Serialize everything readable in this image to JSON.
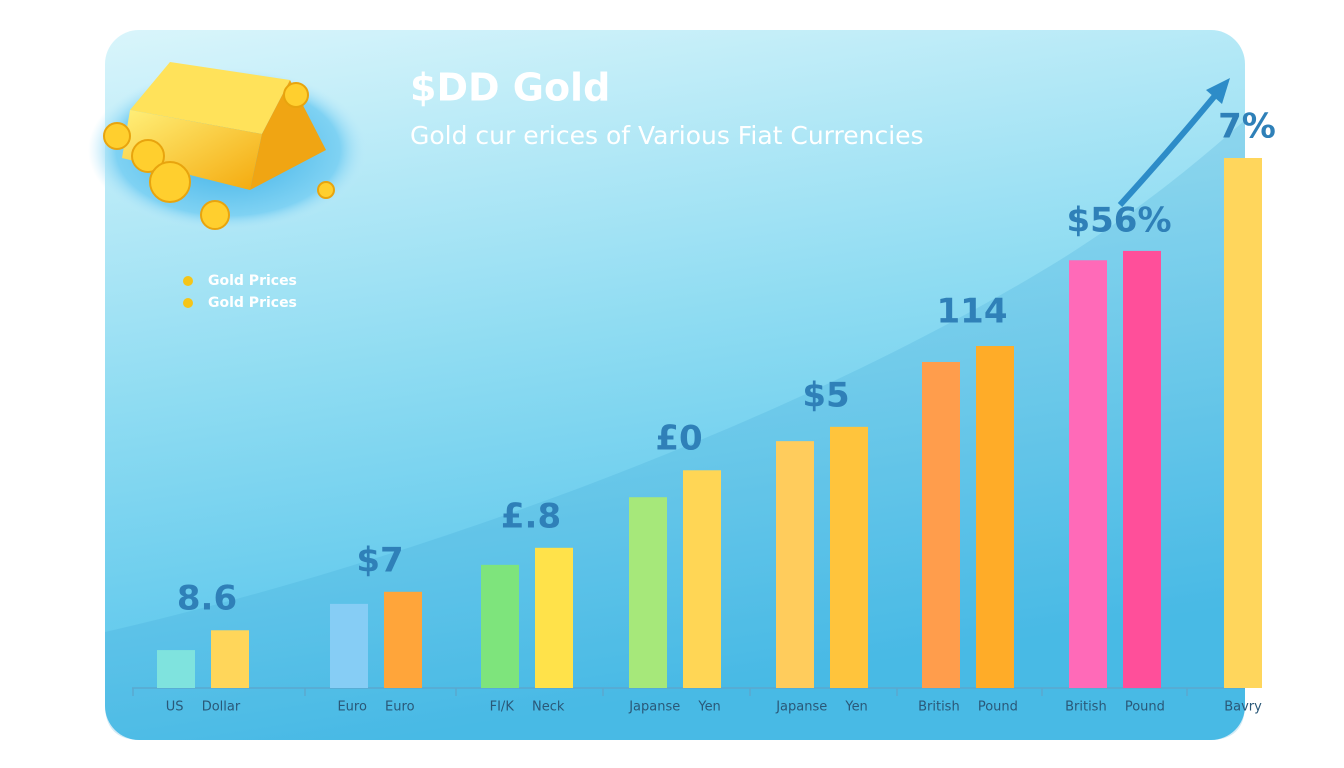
{
  "chart_data": {
    "type": "bar",
    "title": "$DD Gold",
    "subtitle": "Gold cur erices of Various Fiat Currencies",
    "categories": [
      "US Dollar",
      "Euro Euro",
      "FI/K Neck",
      "Japanse Yen",
      "Japanse Yen",
      "British Pound",
      "British Pound",
      "Bavry"
    ],
    "series": [
      {
        "name": "Gold Prices",
        "color": "#f5c518",
        "colors": [
          "#7fe3de",
          "#86cdf5",
          "#7ee47c",
          "#a6e87a",
          "#ffcc5c",
          "#ff9d4c",
          "#ff6ab8",
          "#ffd65c"
        ],
        "values": [
          6.9,
          15.3,
          22.4,
          34.7,
          44.9,
          59.3,
          77.8,
          96.4
        ]
      },
      {
        "name": "Gold Prices",
        "color": "#f5c518",
        "colors": [
          "#ffd65a",
          "#ffa53a",
          "#ffe24a",
          "#ffd655",
          "#ffc43c",
          "#ffac28",
          "#ff4f9a",
          "#ffd65c"
        ],
        "values": [
          10.5,
          17.5,
          25.5,
          39.6,
          47.5,
          62.2,
          79.5,
          null
        ]
      }
    ],
    "annotations": [
      "8.6",
      "$7",
      "£.8",
      "£0",
      "$5",
      "114",
      "$56%",
      "7%"
    ]
  }
}
